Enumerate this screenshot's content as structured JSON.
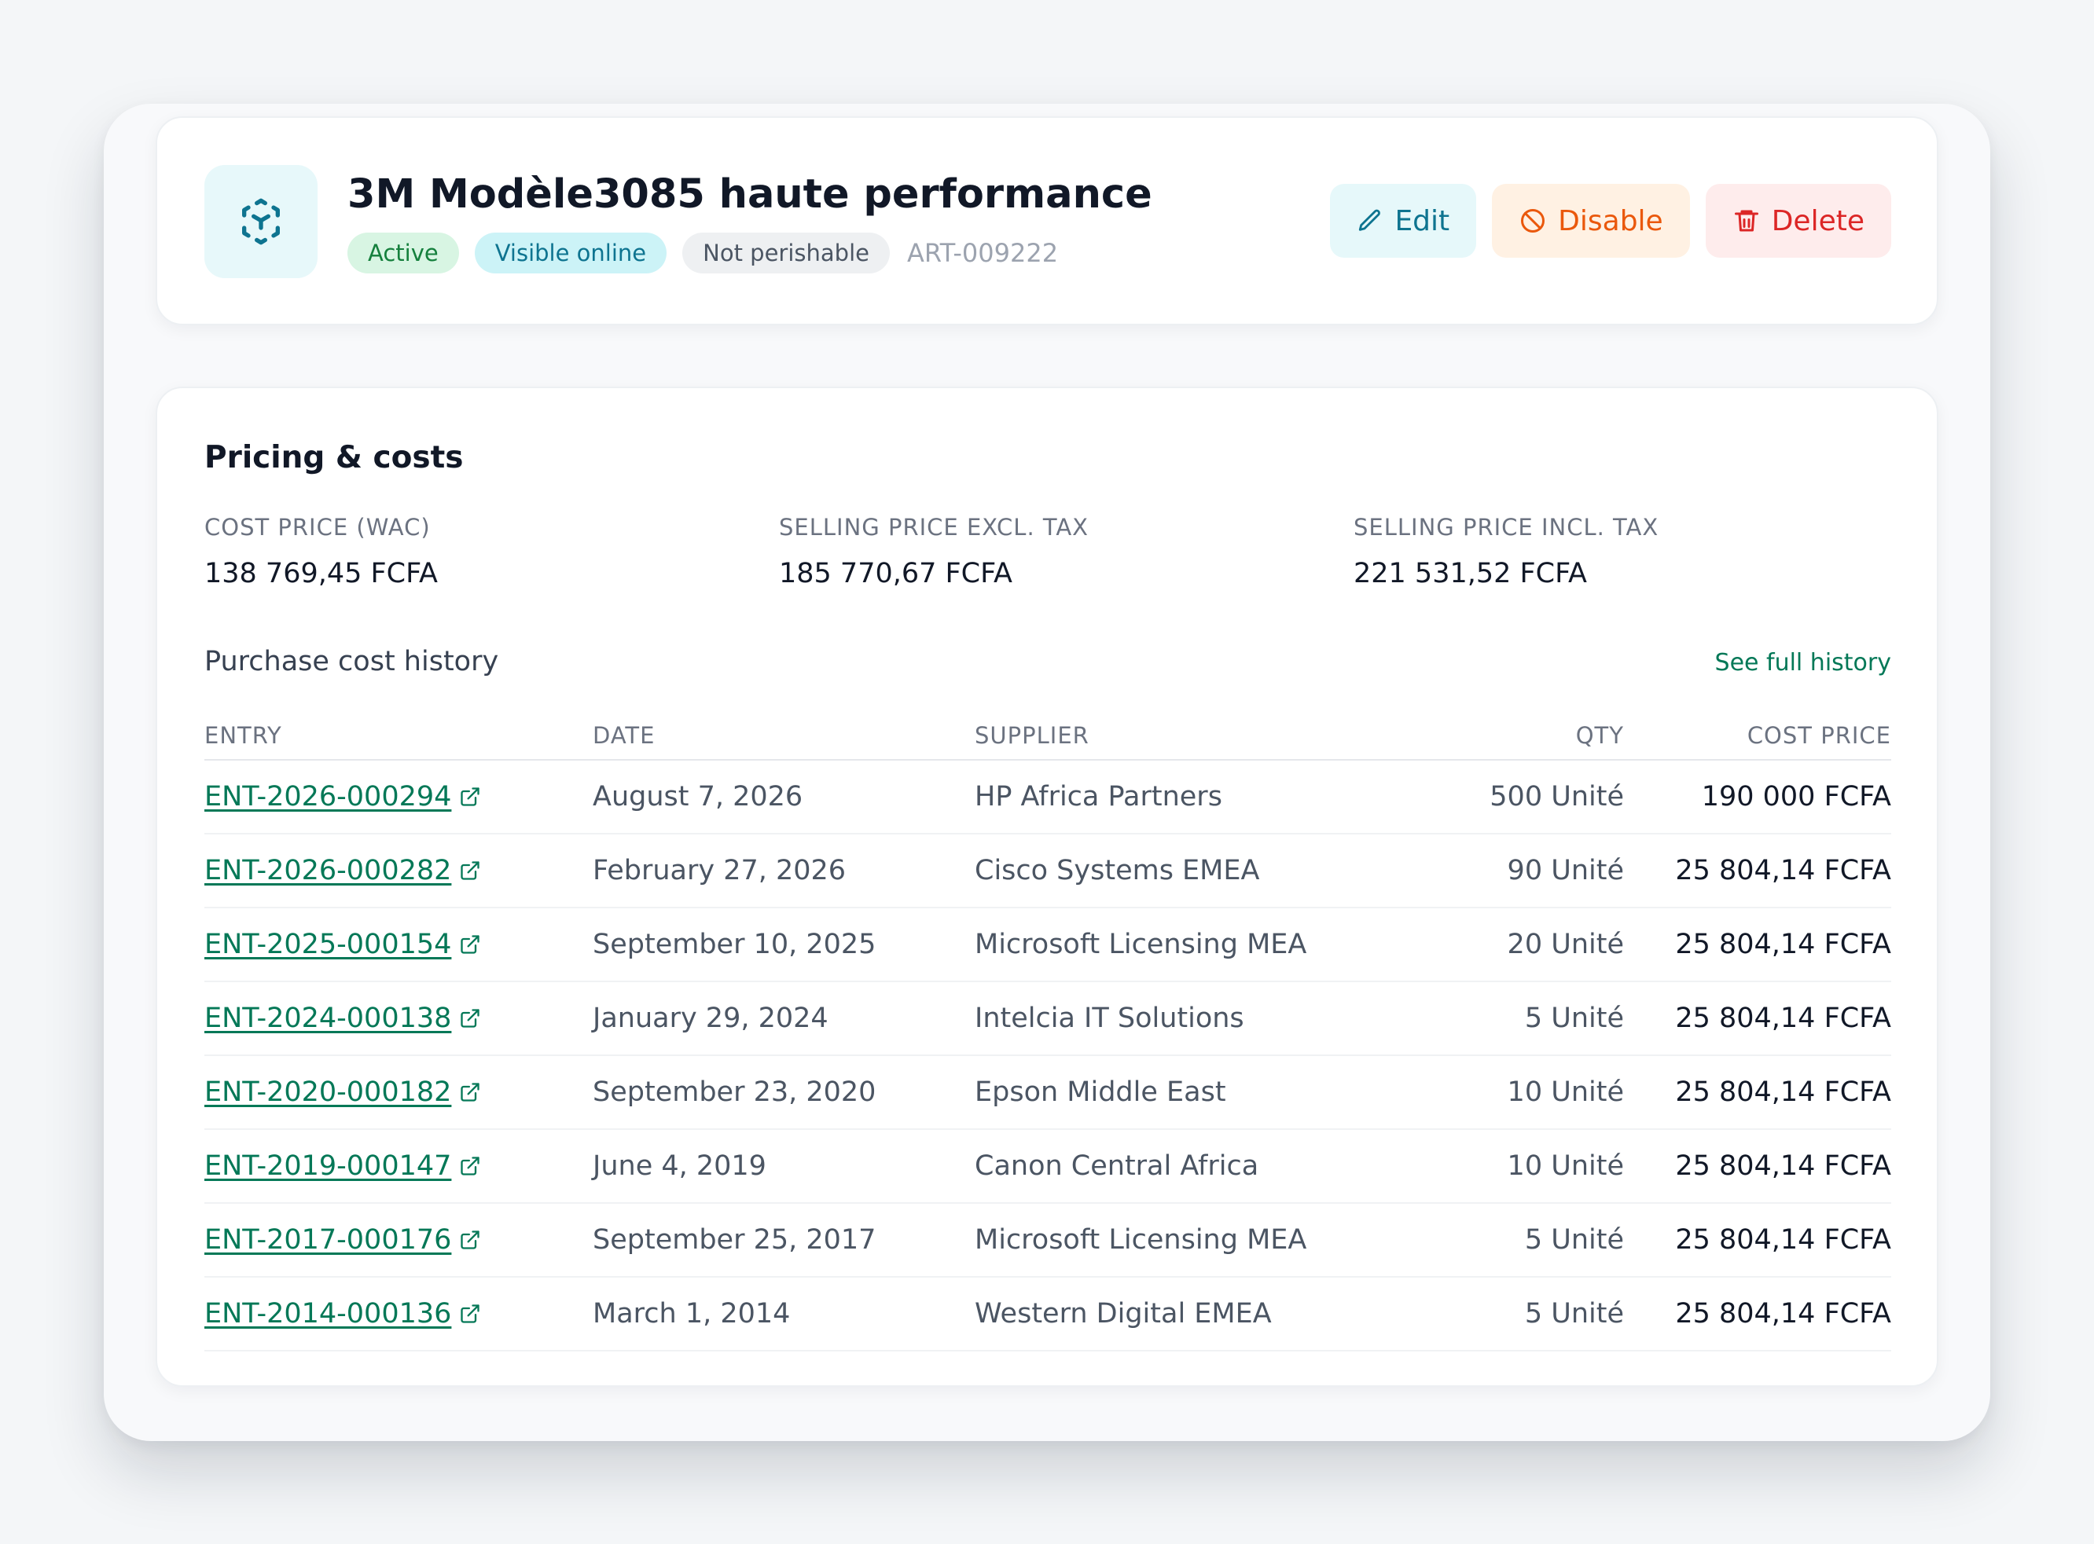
{
  "product": {
    "name": "3M Modèle3085 haute performance",
    "status_badge": "Active",
    "online_badge": "Visible online",
    "perishable_badge": "Not perishable",
    "sku": "ART-009222",
    "icon": "cube-scan-icon"
  },
  "actions": {
    "edit": "Edit",
    "disable": "Disable",
    "delete": "Delete"
  },
  "pricing": {
    "title": "Pricing & costs",
    "metrics": [
      {
        "label": "COST PRICE (WAC)",
        "value": "138 769,45 FCFA"
      },
      {
        "label": "SELLING PRICE EXCL. TAX",
        "value": "185 770,67 FCFA"
      },
      {
        "label": "SELLING PRICE INCL. TAX",
        "value": "221 531,52 FCFA"
      }
    ]
  },
  "history": {
    "title": "Purchase cost history",
    "see_all": "See full history",
    "columns": [
      "ENTRY",
      "DATE",
      "SUPPLIER",
      "QTY",
      "COST PRICE"
    ],
    "rows": [
      {
        "entry": "ENT-2026-000294",
        "date": "August 7, 2026",
        "supplier": "HP Africa Partners",
        "qty": "500 Unité",
        "cost": "190 000 FCFA"
      },
      {
        "entry": "ENT-2026-000282",
        "date": "February 27, 2026",
        "supplier": "Cisco Systems EMEA",
        "qty": "90 Unité",
        "cost": "25 804,14 FCFA"
      },
      {
        "entry": "ENT-2025-000154",
        "date": "September 10, 2025",
        "supplier": "Microsoft Licensing MEA",
        "qty": "20 Unité",
        "cost": "25 804,14 FCFA"
      },
      {
        "entry": "ENT-2024-000138",
        "date": "January 29, 2024",
        "supplier": "Intelcia IT Solutions",
        "qty": "5 Unité",
        "cost": "25 804,14 FCFA"
      },
      {
        "entry": "ENT-2020-000182",
        "date": "September 23, 2020",
        "supplier": "Epson Middle East",
        "qty": "10 Unité",
        "cost": "25 804,14 FCFA"
      },
      {
        "entry": "ENT-2019-000147",
        "date": "June 4, 2019",
        "supplier": "Canon Central Africa",
        "qty": "10 Unité",
        "cost": "25 804,14 FCFA"
      },
      {
        "entry": "ENT-2017-000176",
        "date": "September 25, 2017",
        "supplier": "Microsoft Licensing MEA",
        "qty": "5 Unité",
        "cost": "25 804,14 FCFA"
      },
      {
        "entry": "ENT-2014-000136",
        "date": "March 1, 2014",
        "supplier": "Western Digital EMEA",
        "qty": "5 Unité",
        "cost": "25 804,14 FCFA"
      }
    ]
  },
  "colors": {
    "accent_teal": "#0e7490",
    "link_green": "#047857",
    "warning_orange": "#ea580c",
    "danger_red": "#dc2626"
  }
}
